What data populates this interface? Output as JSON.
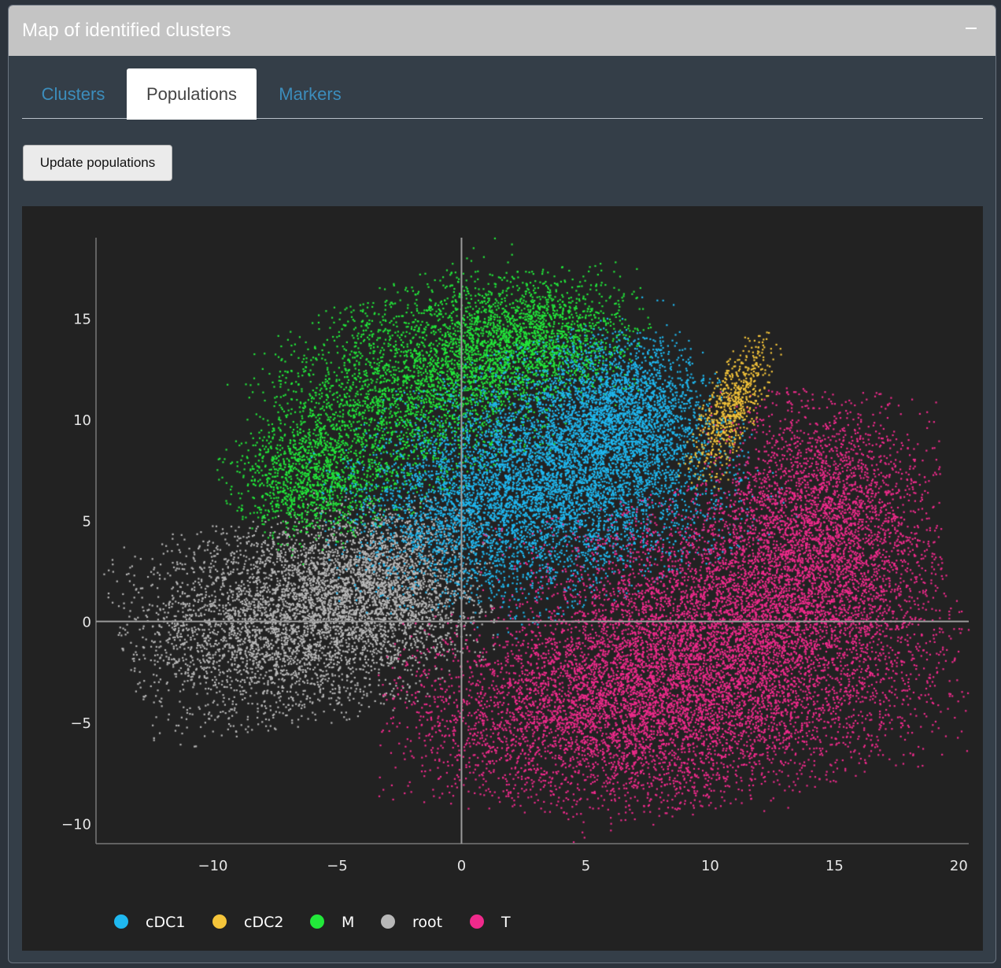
{
  "panel": {
    "title": "Map of identified clusters",
    "collapse_icon": "minus-icon"
  },
  "tabs": [
    {
      "label": "Clusters",
      "active": false
    },
    {
      "label": "Populations",
      "active": true
    },
    {
      "label": "Markers",
      "active": false
    }
  ],
  "toolbar": {
    "update_label": "Update populations"
  },
  "colors": {
    "panel_header": "#c4c4c4",
    "panel_body": "#343e48",
    "plot_background": "#222222",
    "tab_link": "#3c8dbc"
  },
  "chart_data": {
    "type": "scatter",
    "title": "",
    "xlabel": "",
    "ylabel": "",
    "xlim": [
      -14.7,
      20.4
    ],
    "ylim": [
      -11,
      19
    ],
    "x_ticks": [
      -10,
      -5,
      0,
      5,
      10,
      15,
      20
    ],
    "y_ticks": [
      -10,
      -5,
      0,
      5,
      10,
      15
    ],
    "x_tick_labels": [
      "−10",
      "−5",
      "0",
      "5",
      "10",
      "15",
      "20"
    ],
    "y_tick_labels": [
      "−10",
      "−5",
      "0",
      "5",
      "10",
      "15"
    ],
    "zero_lines": true,
    "grid": false,
    "legend_position": "bottom-left",
    "series": [
      {
        "name": "cDC1",
        "color": "#1fb8f0",
        "point_count": 9000,
        "regions": [
          {
            "cx": 4.5,
            "cy": 7.5,
            "sx": 3.3,
            "sy": 3.0,
            "rot": 25,
            "weight": 0.55
          },
          {
            "cx": 0.5,
            "cy": 5.5,
            "sx": 2.8,
            "sy": 2.2,
            "rot": 10,
            "weight": 0.25
          },
          {
            "cx": 6.5,
            "cy": 10.5,
            "sx": 1.6,
            "sy": 1.8,
            "rot": 0,
            "weight": 0.2
          }
        ]
      },
      {
        "name": "cDC2",
        "color": "#f5c53a",
        "point_count": 700,
        "regions": [
          {
            "cx": 10.8,
            "cy": 10.5,
            "sx": 0.55,
            "sy": 1.9,
            "rot": -20,
            "weight": 1.0
          }
        ]
      },
      {
        "name": "M",
        "color": "#22e83a",
        "point_count": 6500,
        "regions": [
          {
            "cx": -1.5,
            "cy": 11.5,
            "sx": 3.2,
            "sy": 2.4,
            "rot": 28,
            "weight": 0.5
          },
          {
            "cx": 2.8,
            "cy": 14.0,
            "sx": 2.2,
            "sy": 1.5,
            "rot": 10,
            "weight": 0.3
          },
          {
            "cx": -6.0,
            "cy": 7.0,
            "sx": 1.6,
            "sy": 1.6,
            "rot": 35,
            "weight": 0.2
          }
        ]
      },
      {
        "name": "root",
        "color": "#b8b8b8",
        "point_count": 6500,
        "regions": [
          {
            "cx": -7.0,
            "cy": 0.0,
            "sx": 3.1,
            "sy": 2.4,
            "rot": 12,
            "weight": 0.65
          },
          {
            "cx": -3.0,
            "cy": 2.0,
            "sx": 2.0,
            "sy": 2.0,
            "rot": 0,
            "weight": 0.35
          }
        ]
      },
      {
        "name": "T",
        "color": "#f02a8c",
        "point_count": 14000,
        "regions": [
          {
            "cx": 11.0,
            "cy": -1.0,
            "sx": 4.2,
            "sy": 3.6,
            "rot": 15,
            "weight": 0.55
          },
          {
            "cx": 5.0,
            "cy": -4.5,
            "sx": 3.8,
            "sy": 2.3,
            "rot": 0,
            "weight": 0.25
          },
          {
            "cx": 14.5,
            "cy": 5.0,
            "sx": 2.2,
            "sy": 3.0,
            "rot": 0,
            "weight": 0.2
          }
        ]
      }
    ]
  }
}
